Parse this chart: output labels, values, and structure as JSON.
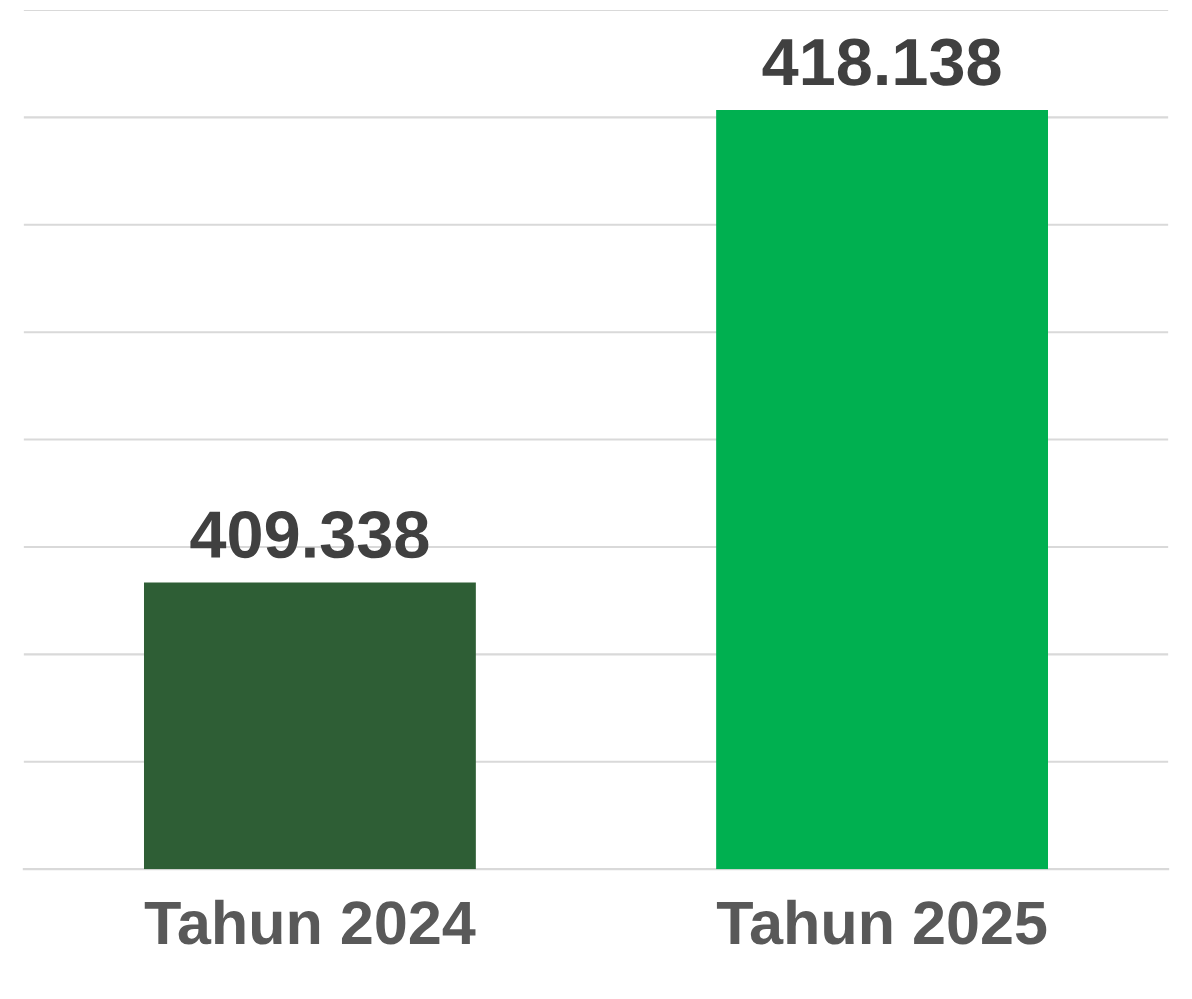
{
  "chart_data": {
    "type": "bar",
    "categories": [
      "Tahun 2024",
      "Tahun 2025"
    ],
    "values": [
      409.338,
      418.138
    ],
    "colors": [
      "#2e5e35",
      "#00b050"
    ],
    "data_labels": true,
    "ylim": [
      404,
      420
    ],
    "yticks": [
      {
        "value": 404,
        "label": null
      },
      {
        "value": 406,
        "label": null
      },
      {
        "value": 408,
        "label": null
      },
      {
        "value": 410,
        "label": null
      },
      {
        "value": 412,
        "label": null
      },
      {
        "value": 414,
        "label": null
      },
      {
        "value": 416,
        "label": null
      },
      {
        "value": 418,
        "label": null
      },
      {
        "value": 420,
        "label": null
      }
    ],
    "tick_labels": "x",
    "grid": "y"
  }
}
